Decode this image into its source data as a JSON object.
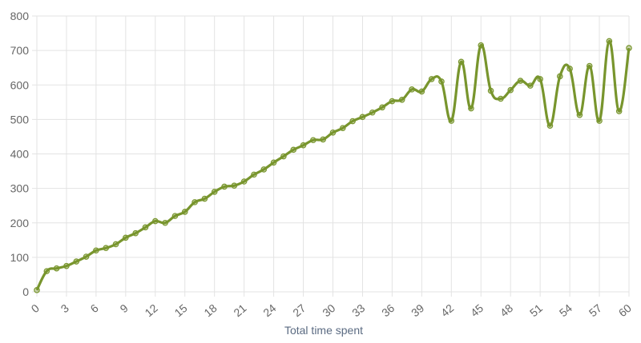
{
  "chart_data": {
    "type": "line",
    "title": "",
    "xlabel": "Total time spent",
    "ylabel": "",
    "xlim": [
      0,
      60
    ],
    "ylim": [
      0,
      800
    ],
    "x_ticks": [
      "0",
      "3",
      "6",
      "9",
      "12",
      "15",
      "18",
      "21",
      "24",
      "27",
      "30",
      "33",
      "36",
      "39",
      "42",
      "45",
      "48",
      "51",
      "54",
      "57",
      "60"
    ],
    "y_ticks": [
      "0",
      "100",
      "200",
      "300",
      "400",
      "500",
      "600",
      "700",
      "800"
    ],
    "grid": true,
    "legend": "none",
    "series": [
      {
        "color": "#78952d",
        "x": [
          0,
          1,
          2,
          3,
          4,
          5,
          6,
          7,
          8,
          9,
          10,
          11,
          12,
          13,
          14,
          15,
          16,
          17,
          18,
          19,
          20,
          21,
          22,
          23,
          24,
          25,
          26,
          27,
          28,
          29,
          30,
          31,
          32,
          33,
          34,
          35,
          36,
          37,
          38,
          39,
          40,
          41,
          42,
          43,
          44,
          45,
          46,
          47,
          48,
          49,
          50,
          51,
          52,
          53,
          54,
          55,
          56,
          57,
          58,
          59,
          60
        ],
        "values": [
          5,
          60,
          68,
          75,
          88,
          102,
          120,
          127,
          138,
          157,
          170,
          187,
          205,
          200,
          220,
          232,
          260,
          270,
          290,
          305,
          308,
          320,
          340,
          355,
          375,
          393,
          412,
          425,
          440,
          442,
          462,
          475,
          495,
          507,
          520,
          535,
          553,
          557,
          587,
          581,
          617,
          610,
          496,
          667,
          532,
          715,
          583,
          560,
          585,
          612,
          598,
          617,
          482,
          625,
          647,
          513,
          655,
          496,
          727,
          524,
          707
        ]
      }
    ]
  }
}
